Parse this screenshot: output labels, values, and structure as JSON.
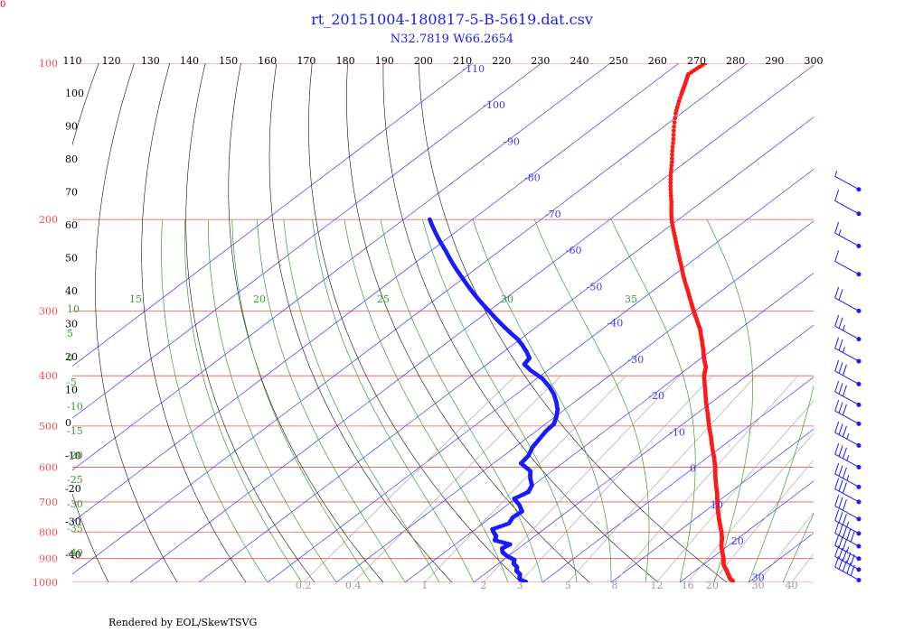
{
  "page": {
    "title": "rt_20151004-180817-5-B-5619.dat.csv",
    "subtitle": "N32.7819 W66.2654",
    "credit": "Rendered by EOL/SkewTSVG",
    "corner_label": "0"
  },
  "colors": {
    "isobar": "#ff4d4d",
    "isotherm": "#3a3aff",
    "dry_adiabat": "#111111",
    "moist_adiabat": "#3a9a3a",
    "mixing_ratio": "#aaaaaa",
    "temperature": "#ff1a1a",
    "dewpoint": "#1a1aff",
    "wind": "#1a1aff"
  },
  "chart_data": {
    "type": "scatter",
    "title": "rt_20151004-180817-5-B-5619.dat.csv",
    "subtitle": "N32.7819 W66.2654",
    "pressure_range_hpa": [
      1000,
      100
    ],
    "grid": true,
    "isobars": [
      100,
      200,
      300,
      400,
      500,
      600,
      700,
      800,
      900,
      1000
    ],
    "isotherms": [
      -110,
      -100,
      -90,
      -80,
      -70,
      -60,
      -50,
      -40,
      -30,
      -20,
      -10,
      0,
      10,
      20,
      30
    ],
    "dry_adiabats": [
      110,
      120,
      130,
      140,
      150,
      160,
      170,
      180,
      190,
      200,
      210,
      220,
      230,
      240,
      250,
      260,
      270,
      280,
      290,
      300
    ],
    "dry_adiabat_labels_left": [
      "100",
      "90",
      "80",
      "70",
      "60",
      "50",
      "40",
      "30",
      "20",
      "10",
      "0",
      "-10",
      "-20",
      "-30",
      "-40"
    ],
    "moist_adiabat_labels": [
      "15",
      "20",
      "25",
      "30",
      "35"
    ],
    "moist_adiabat_labels_left": [
      "10",
      "5",
      "0",
      "-5",
      "-10",
      "-15",
      "-20",
      "-25",
      "-30",
      "-35",
      "-40"
    ],
    "mixing_ratio_labels": [
      "0.2",
      "0.4",
      "1",
      "2",
      "3",
      "5",
      "8",
      "12",
      "16",
      "20",
      "30",
      "40"
    ],
    "temperature_series": {
      "name": "",
      "points": [
        [
          995,
          27.5
        ],
        [
          985,
          26.7
        ],
        [
          970,
          25.8
        ],
        [
          950,
          24.6
        ],
        [
          925,
          23
        ],
        [
          900,
          21.8
        ],
        [
          875,
          20.4
        ],
        [
          850,
          19
        ],
        [
          825,
          17.8
        ],
        [
          800,
          16.4
        ],
        [
          775,
          14.8
        ],
        [
          750,
          13.2
        ],
        [
          725,
          11.6
        ],
        [
          700,
          10
        ],
        [
          675,
          8.4
        ],
        [
          650,
          6.6
        ],
        [
          625,
          4.8
        ],
        [
          600,
          3
        ],
        [
          575,
          1
        ],
        [
          550,
          -1.2
        ],
        [
          525,
          -3.4
        ],
        [
          500,
          -5.8
        ],
        [
          475,
          -8.2
        ],
        [
          450,
          -10.8
        ],
        [
          425,
          -13.4
        ],
        [
          400,
          -16.2
        ],
        [
          385,
          -17.6
        ],
        [
          370,
          -19.6
        ],
        [
          355,
          -21.5
        ],
        [
          340,
          -23.6
        ],
        [
          325,
          -25.8
        ],
        [
          310,
          -28.4
        ],
        [
          300,
          -30.2
        ],
        [
          290,
          -32
        ],
        [
          275,
          -34.8
        ],
        [
          260,
          -37.8
        ],
        [
          245,
          -40.8
        ],
        [
          230,
          -44
        ],
        [
          215,
          -47.4
        ],
        [
          200,
          -51
        ],
        [
          185,
          -54.4
        ],
        [
          170,
          -58.2
        ],
        [
          155,
          -62
        ],
        [
          140,
          -66.2
        ],
        [
          125,
          -70.8
        ],
        [
          115,
          -73.6
        ],
        [
          110,
          -75
        ],
        [
          105,
          -76.5
        ],
        [
          100,
          -76.2
        ],
        [
          96,
          -76.8
        ],
        [
          93,
          -76
        ],
        [
          90,
          -75
        ],
        [
          87,
          -74.6
        ],
        [
          84,
          -75.2
        ],
        [
          81,
          -73.8
        ],
        [
          79,
          -73.4
        ],
        [
          77,
          -72.6
        ],
        [
          76,
          -71
        ],
        [
          75,
          -69
        ]
      ]
    },
    "dewpoint_series": {
      "name": "",
      "points": [
        [
          998,
          -2.5
        ],
        [
          990,
          -3.6
        ],
        [
          980,
          -4.2
        ],
        [
          965,
          -4.8
        ],
        [
          950,
          -6
        ],
        [
          935,
          -6.6
        ],
        [
          920,
          -7.8
        ],
        [
          905,
          -8.4
        ],
        [
          890,
          -10.2
        ],
        [
          875,
          -11.6
        ],
        [
          860,
          -12.4
        ],
        [
          845,
          -12
        ],
        [
          830,
          -15
        ],
        [
          815,
          -15.6
        ],
        [
          800,
          -16.8
        ],
        [
          790,
          -17.5
        ],
        [
          770,
          -16.2
        ],
        [
          750,
          -16.8
        ],
        [
          730,
          -16.6
        ],
        [
          710,
          -18.2
        ],
        [
          690,
          -20.2
        ],
        [
          670,
          -19.4
        ],
        [
          650,
          -20.2
        ],
        [
          630,
          -21.8
        ],
        [
          610,
          -23.2
        ],
        [
          590,
          -26
        ],
        [
          570,
          -26.4
        ],
        [
          550,
          -27.4
        ],
        [
          530,
          -28
        ],
        [
          510,
          -28.6
        ],
        [
          495,
          -28.8
        ],
        [
          480,
          -29.8
        ],
        [
          465,
          -31
        ],
        [
          450,
          -32.6
        ],
        [
          435,
          -34.4
        ],
        [
          420,
          -36.6
        ],
        [
          405,
          -39.2
        ],
        [
          390,
          -42.6
        ],
        [
          380,
          -44.6
        ],
        [
          370,
          -45
        ],
        [
          360,
          -46.6
        ],
        [
          350,
          -48.4
        ],
        [
          340,
          -50.4
        ],
        [
          330,
          -52.8
        ],
        [
          320,
          -55.2
        ],
        [
          310,
          -57.6
        ],
        [
          300,
          -60
        ],
        [
          290,
          -62.5
        ],
        [
          280,
          -65
        ],
        [
          270,
          -67.5
        ],
        [
          260,
          -70
        ],
        [
          250,
          -72.6
        ],
        [
          240,
          -75.2
        ],
        [
          230,
          -77.8
        ],
        [
          220,
          -80.6
        ],
        [
          210,
          -83.4
        ],
        [
          200,
          -86.2
        ]
      ]
    },
    "wind_barbs": [
      {
        "pressure": 990,
        "speed_kt": 50
      },
      {
        "pressure": 945,
        "speed_kt": 50
      },
      {
        "pressure": 900,
        "speed_kt": 35
      },
      {
        "pressure": 852,
        "speed_kt": 50
      },
      {
        "pressure": 805,
        "speed_kt": 35
      },
      {
        "pressure": 755,
        "speed_kt": 30
      },
      {
        "pressure": 700,
        "speed_kt": 30
      },
      {
        "pressure": 655,
        "speed_kt": 35
      },
      {
        "pressure": 600,
        "speed_kt": 35
      },
      {
        "pressure": 545,
        "speed_kt": 35
      },
      {
        "pressure": 495,
        "speed_kt": 30
      },
      {
        "pressure": 455,
        "speed_kt": 30
      },
      {
        "pressure": 415,
        "speed_kt": 30
      },
      {
        "pressure": 375,
        "speed_kt": 25
      },
      {
        "pressure": 340,
        "speed_kt": 25
      },
      {
        "pressure": 300,
        "speed_kt": 20
      },
      {
        "pressure": 255,
        "speed_kt": 10
      },
      {
        "pressure": 225,
        "speed_kt": 15
      },
      {
        "pressure": 195,
        "speed_kt": 10
      },
      {
        "pressure": 175,
        "speed_kt": 5
      }
    ]
  }
}
